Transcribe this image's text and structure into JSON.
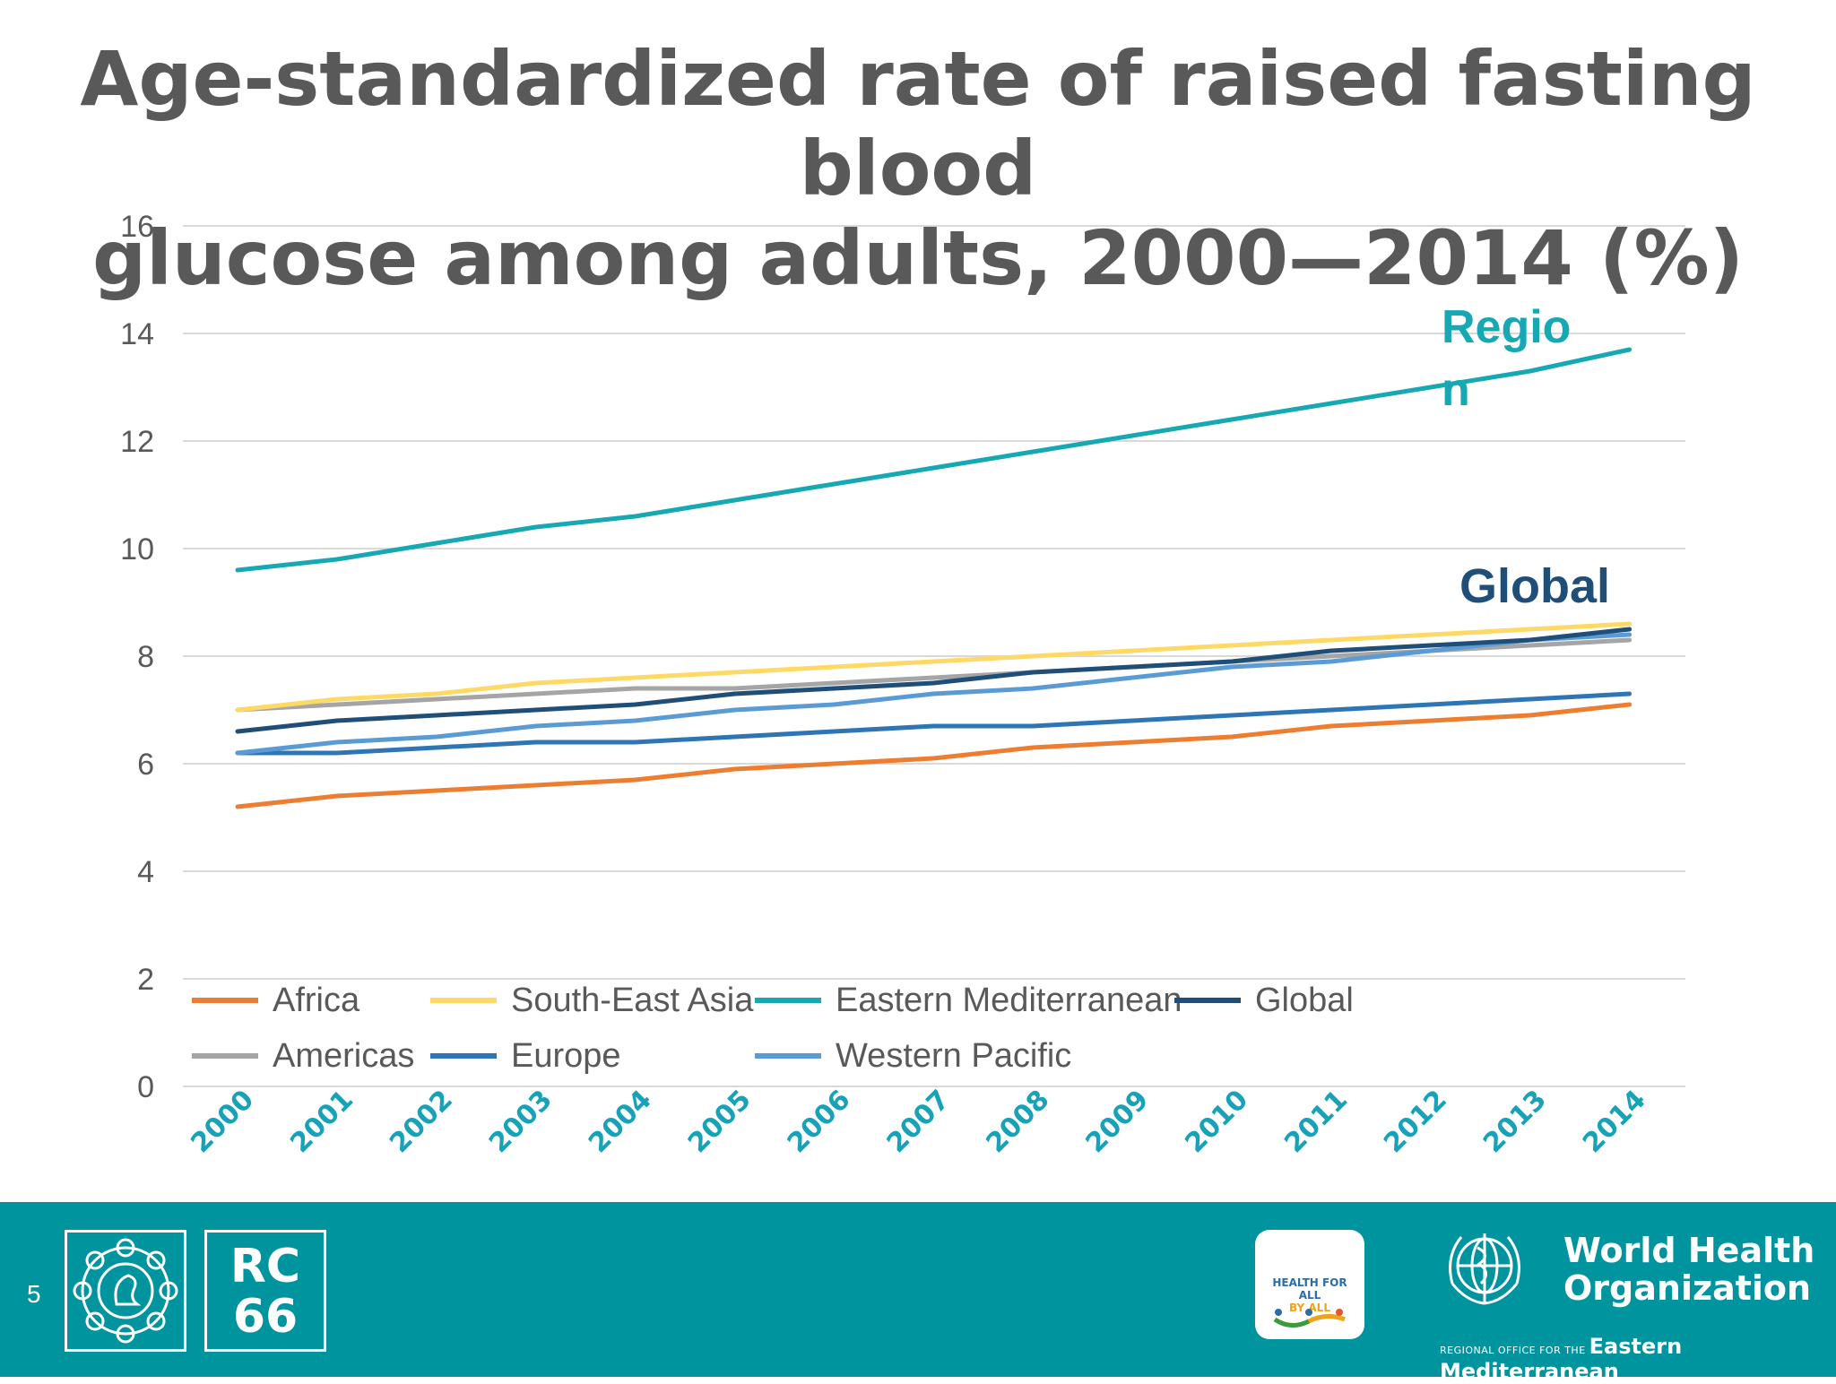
{
  "slide": {
    "title_line1": "Age-standardized rate of raised fasting blood",
    "title_line2": "glucose among adults, 2000—2014 (%)",
    "slide_number": "5"
  },
  "colors": {
    "axis_label": "#595959",
    "x_tick": "#17a2b8",
    "grid": "#d9d9d9",
    "footer": "#00949f"
  },
  "chart_data": {
    "type": "line",
    "x": [
      "2000",
      "2001",
      "2002",
      "2003",
      "2004",
      "2005",
      "2006",
      "2007",
      "2008",
      "2009",
      "2010",
      "2011",
      "2012",
      "2013",
      "2014"
    ],
    "ylim": [
      0,
      16
    ],
    "yticks": [
      0,
      2,
      4,
      6,
      8,
      10,
      12,
      14,
      16
    ],
    "grid": true,
    "legend_position": "bottom-inside",
    "series": [
      {
        "name": "Africa",
        "color": "#ed7d31",
        "values": [
          5.2,
          5.4,
          5.5,
          5.6,
          5.7,
          5.9,
          6.0,
          6.1,
          6.3,
          6.4,
          6.5,
          6.7,
          6.8,
          6.9,
          7.1
        ]
      },
      {
        "name": "Americas",
        "color": "#a5a5a5",
        "values": [
          7.0,
          7.1,
          7.2,
          7.3,
          7.4,
          7.4,
          7.5,
          7.6,
          7.7,
          7.8,
          7.9,
          8.0,
          8.1,
          8.2,
          8.3
        ]
      },
      {
        "name": "South-East Asia",
        "color": "#ffd966",
        "values": [
          7.0,
          7.2,
          7.3,
          7.5,
          7.6,
          7.7,
          7.8,
          7.9,
          8.0,
          8.1,
          8.2,
          8.3,
          8.4,
          8.5,
          8.6
        ]
      },
      {
        "name": "Europe",
        "color": "#2e75b6",
        "values": [
          6.2,
          6.2,
          6.3,
          6.4,
          6.4,
          6.5,
          6.6,
          6.7,
          6.7,
          6.8,
          6.9,
          7.0,
          7.1,
          7.2,
          7.3
        ]
      },
      {
        "name": "Eastern Mediterranean",
        "color": "#17a9b3",
        "values": [
          9.6,
          9.8,
          10.1,
          10.4,
          10.6,
          10.9,
          11.2,
          11.5,
          11.8,
          12.1,
          12.4,
          12.7,
          13.0,
          13.3,
          13.7
        ]
      },
      {
        "name": "Western Pacific",
        "color": "#5b9bd5",
        "values": [
          6.2,
          6.4,
          6.5,
          6.7,
          6.8,
          7.0,
          7.1,
          7.3,
          7.4,
          7.6,
          7.8,
          7.9,
          8.1,
          8.3,
          8.4
        ]
      },
      {
        "name": "Global",
        "color": "#1f4e79",
        "values": [
          6.6,
          6.8,
          6.9,
          7.0,
          7.1,
          7.3,
          7.4,
          7.5,
          7.7,
          7.8,
          7.9,
          8.1,
          8.2,
          8.3,
          8.5
        ]
      }
    ],
    "annotations": [
      {
        "text": "Regio",
        "color": "#17a9b3"
      },
      {
        "text": "n",
        "color": "#17a9b3"
      },
      {
        "text": "Global",
        "color": "#1f4e79"
      }
    ]
  },
  "footer": {
    "rc_line1": "RC",
    "rc_line2": "66",
    "hfa_line1": "HEALTH FOR ALL",
    "hfa_line2": "BY ALL",
    "who_line1": "World Health",
    "who_line2": "Organization",
    "who_region_prefix": "REGIONAL OFFICE FOR THE",
    "who_region_name": "Eastern Mediterranean"
  }
}
